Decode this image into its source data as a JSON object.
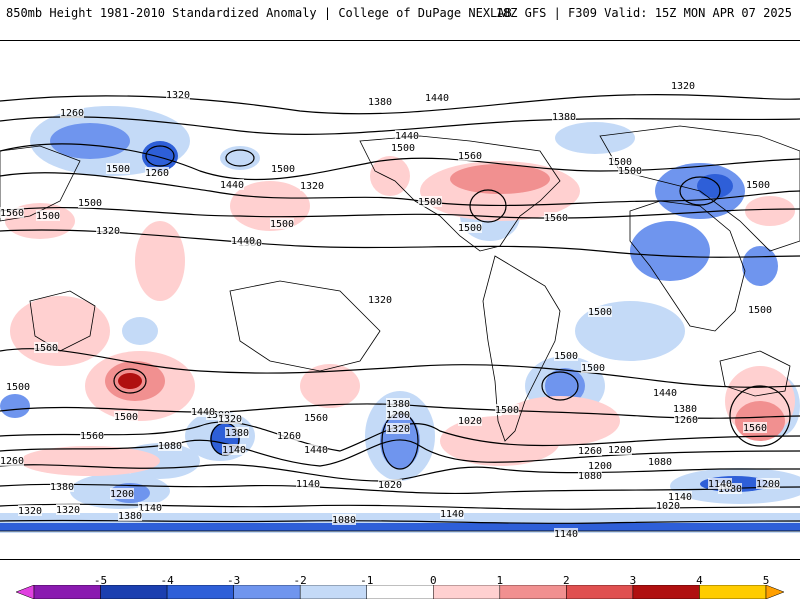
{
  "header": {
    "title_left": "850mb Height 1981-2010 Standardized Anomaly | College of DuPage NEXLAB",
    "title_right": "18Z GFS | F309 Valid: 15Z MON APR 07 2025"
  },
  "contour_labels": [
    "1320",
    "1380",
    "1260",
    "1320",
    "1380",
    "1440",
    "1500",
    "1320",
    "1440",
    "1500",
    "1560",
    "1500",
    "1500",
    "1500",
    "1560",
    "1500",
    "1500",
    "1260",
    "1440",
    "1500",
    "1560",
    "1500",
    "1500",
    "1320",
    "1380",
    "1320",
    "1440",
    "1500",
    "1500",
    "1560",
    "1500",
    "1500",
    "1500",
    "1500",
    "1380",
    "1320",
    "1260",
    "1440",
    "1500",
    "1560",
    "1560",
    "1440",
    "1380",
    "1200",
    "1320",
    "1500",
    "1380",
    "1260",
    "1020",
    "1560",
    "1440",
    "1500",
    "1260",
    "1200",
    "1080",
    "1140",
    "1200",
    "1080",
    "1140",
    "1380",
    "1320",
    "1200",
    "1140",
    "1080",
    "1140",
    "1020",
    "1080",
    "1140",
    "1020",
    "1200",
    "1140",
    "1260",
    "1320",
    "1380",
    "1080",
    "1140"
  ],
  "colorbar": {
    "labels": [
      "-5",
      "-4",
      "-3",
      "-2",
      "-1",
      "0",
      "1",
      "2",
      "3",
      "4",
      "5"
    ],
    "colors": [
      "#e040e0",
      "#8a1ab0",
      "#1b3fb0",
      "#2e5fd8",
      "#6f95ee",
      "#c4daf7",
      "#ffffff",
      "#ffd0d0",
      "#f19090",
      "#e05050",
      "#b01010",
      "#ffcc00",
      "#ff9f00"
    ]
  }
}
